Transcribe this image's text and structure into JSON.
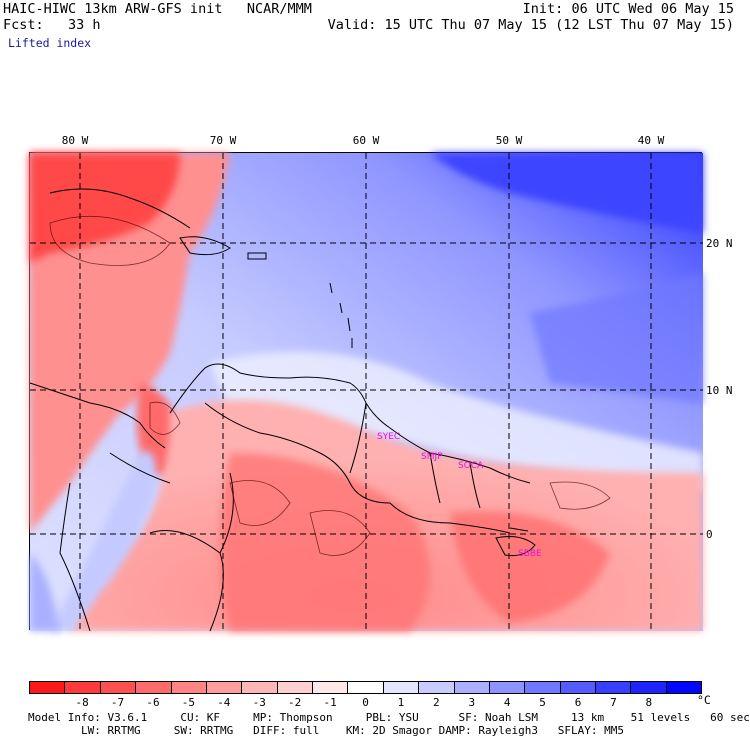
{
  "header": {
    "model": "HAIC-HIWC 13km ARW-GFS init   NCAR/MMM",
    "init": "Init: 06 UTC Wed 06 May 15",
    "fcst": "Fcst:   33 h",
    "valid": "Valid: 15 UTC Thu 07 May 15 (12 LST Thu 07 May 15)",
    "field": "Lifted index"
  },
  "map": {
    "lon_labels": [
      "80 W",
      "70 W",
      "60 W",
      "50 W",
      "40 W"
    ],
    "lat_labels": [
      "20 N",
      "10 N",
      "0"
    ],
    "stations": [
      "SYEC",
      "SMJP",
      "SOCA",
      "SBBE"
    ]
  },
  "colorbar": {
    "colors": [
      "#ff1818",
      "#ff3a3a",
      "#ff5050",
      "#ff6a6a",
      "#ff8484",
      "#ff9e9e",
      "#ffb6b6",
      "#ffd0d0",
      "#ffe8e8",
      "#ffffff",
      "#e4e6ff",
      "#c8ccff",
      "#aab0ff",
      "#8e94ff",
      "#7078ff",
      "#545cff",
      "#3840ff",
      "#1c24ff",
      "#0008ff"
    ],
    "ticks": [
      "-8",
      "-7",
      "-6",
      "-5",
      "-4",
      "-3",
      "-2",
      "-1",
      "0",
      "1",
      "2",
      "3",
      "4",
      "5",
      "6",
      "7",
      "8"
    ],
    "unit": "°C"
  },
  "footer": {
    "line1": "Model Info: V3.6.1     CU: KF     MP: Thompson     PBL: YSU      SF: Noah LSM     13 km    51 levels   60 sec",
    "line2": "        LW: RRTMG     SW: RRTMG   DIFF: full    KM: 2D Smagor DAMP: Rayleigh3   SFLAY: MM5"
  }
}
